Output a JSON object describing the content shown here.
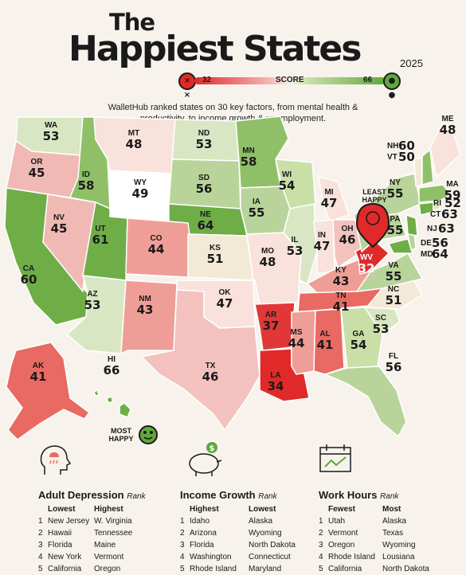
{
  "title": {
    "the": "The",
    "main": "Happiest States",
    "year": "2025"
  },
  "score_legend": {
    "min": "32",
    "label": "SCORE",
    "max": "66",
    "min_color": "#e02a2a",
    "max_color": "#5fa83b"
  },
  "subtitle": "WalletHub ranked states on 30 key factors, from mental health & productivity, to income growth & unemployment.",
  "annotations": {
    "least_happy": "LEAST HAPPY",
    "most_happy": "MOST HAPPY"
  },
  "states": [
    {
      "abbr": "WA",
      "score": "53"
    },
    {
      "abbr": "OR",
      "score": "45"
    },
    {
      "abbr": "CA",
      "score": "60"
    },
    {
      "abbr": "ID",
      "score": "58"
    },
    {
      "abbr": "NV",
      "score": "45"
    },
    {
      "abbr": "MT",
      "score": "48"
    },
    {
      "abbr": "WY",
      "score": "49"
    },
    {
      "abbr": "UT",
      "score": "61"
    },
    {
      "abbr": "AZ",
      "score": "53"
    },
    {
      "abbr": "CO",
      "score": "44"
    },
    {
      "abbr": "NM",
      "score": "43"
    },
    {
      "abbr": "ND",
      "score": "53"
    },
    {
      "abbr": "SD",
      "score": "56"
    },
    {
      "abbr": "NE",
      "score": "64"
    },
    {
      "abbr": "KS",
      "score": "51"
    },
    {
      "abbr": "OK",
      "score": "47"
    },
    {
      "abbr": "TX",
      "score": "46"
    },
    {
      "abbr": "MN",
      "score": "58"
    },
    {
      "abbr": "IA",
      "score": "55"
    },
    {
      "abbr": "MO",
      "score": "48"
    },
    {
      "abbr": "AR",
      "score": "37"
    },
    {
      "abbr": "LA",
      "score": "34"
    },
    {
      "abbr": "WI",
      "score": "54"
    },
    {
      "abbr": "IL",
      "score": "53"
    },
    {
      "abbr": "MI",
      "score": "47"
    },
    {
      "abbr": "IN",
      "score": "47"
    },
    {
      "abbr": "OH",
      "score": "46"
    },
    {
      "abbr": "KY",
      "score": "43"
    },
    {
      "abbr": "TN",
      "score": "41"
    },
    {
      "abbr": "MS",
      "score": "44"
    },
    {
      "abbr": "AL",
      "score": "41"
    },
    {
      "abbr": "GA",
      "score": "54"
    },
    {
      "abbr": "FL",
      "score": "56"
    },
    {
      "abbr": "SC",
      "score": "53"
    },
    {
      "abbr": "NC",
      "score": "51"
    },
    {
      "abbr": "VA",
      "score": "55"
    },
    {
      "abbr": "WV",
      "score": "32"
    },
    {
      "abbr": "PA",
      "score": "55"
    },
    {
      "abbr": "NY",
      "score": "55"
    },
    {
      "abbr": "VT",
      "score": "50"
    },
    {
      "abbr": "NH",
      "score": "60"
    },
    {
      "abbr": "ME",
      "score": "48"
    },
    {
      "abbr": "MA",
      "score": "59"
    },
    {
      "abbr": "RI",
      "score": "52"
    },
    {
      "abbr": "CT",
      "score": "63"
    },
    {
      "abbr": "NJ",
      "score": "63"
    },
    {
      "abbr": "DE",
      "score": "56"
    },
    {
      "abbr": "MD",
      "score": "64"
    },
    {
      "abbr": "AK",
      "score": "41"
    },
    {
      "abbr": "HI",
      "score": "66"
    }
  ],
  "panels": {
    "depression": {
      "title": "Adult Depression",
      "rank": "Rank",
      "col1_head": "Lowest",
      "col2_head": "Highest",
      "nums": [
        "1",
        "2",
        "3",
        "4",
        "5"
      ],
      "col1": [
        "New Jersey",
        "Hawaii",
        "Florida",
        "New York",
        "California"
      ],
      "col2": [
        "W. Virginia",
        "Tennessee",
        "Maine",
        "Vermont",
        "Oregon"
      ],
      "icon": "head-rain-cloud-icon"
    },
    "income": {
      "title": "Income Growth",
      "rank": "Rank",
      "col1_head": "Highest",
      "col2_head": "Lowest",
      "nums": [
        "1",
        "2",
        "3",
        "4",
        "5"
      ],
      "col1": [
        "Idaho",
        "Arizona",
        "Florida",
        "Washington",
        "Rhode Island"
      ],
      "col2": [
        "Alaska",
        "Wyoming",
        "North Dakota",
        "Connecticut",
        "Maryland"
      ],
      "icon": "piggy-bank-icon"
    },
    "work": {
      "title": "Work Hours",
      "rank": "Rank",
      "col1_head": "Fewest",
      "col2_head": "Most",
      "nums": [
        "1",
        "2",
        "3",
        "4",
        "5"
      ],
      "col1": [
        "Utah",
        "Vermont",
        "Oregon",
        "Rhode Island",
        "California"
      ],
      "col2": [
        "Alaska",
        "Texas",
        "Wyoming",
        "Lousiana",
        "North Dakota"
      ],
      "icon": "calendar-chart-icon"
    }
  }
}
